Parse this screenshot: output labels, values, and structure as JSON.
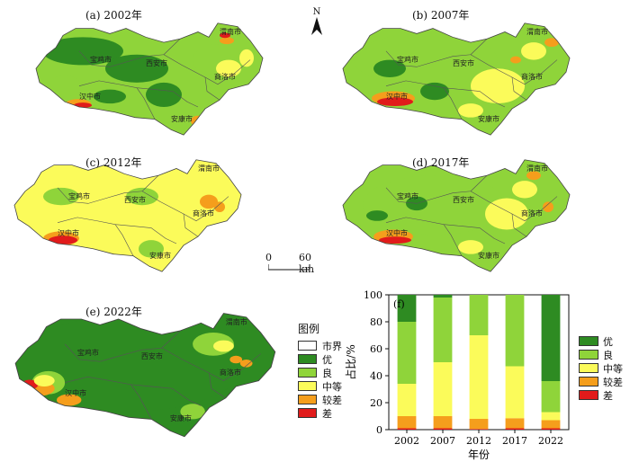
{
  "north_label": "N",
  "scale_bar": {
    "zero": "0",
    "end": "60 km"
  },
  "panels": [
    {
      "title": "(a) 2002年"
    },
    {
      "title": "(b) 2007年"
    },
    {
      "title": "(c) 2012年"
    },
    {
      "title": "(d) 2017年"
    },
    {
      "title": "(e) 2022年"
    }
  ],
  "cities": [
    "渭南市",
    "宝鸡市",
    "西安市",
    "商洛市",
    "汉中市",
    "安康市"
  ],
  "legend": {
    "title": "图例",
    "items": [
      {
        "label": "市界",
        "color": "#ffffff"
      },
      {
        "label": "优",
        "color": "#2e8b22"
      },
      {
        "label": "良",
        "color": "#8fd43a"
      },
      {
        "label": "中等",
        "color": "#fbfb5a"
      },
      {
        "label": "较差",
        "color": "#f59e1c"
      },
      {
        "label": "差",
        "color": "#e11b1b"
      }
    ]
  },
  "chart_data": {
    "type": "bar",
    "stacked": true,
    "panel_label": "(f)",
    "categories": [
      "2002",
      "2007",
      "2012",
      "2017",
      "2022"
    ],
    "xlabel": "年份",
    "ylabel": "占比/%",
    "ylim": [
      0,
      100
    ],
    "yticks": [
      0,
      20,
      40,
      60,
      80,
      100
    ],
    "series": [
      {
        "name": "差",
        "color": "#e11b1b",
        "values": [
          1,
          1,
          0.5,
          1,
          1
        ]
      },
      {
        "name": "较差",
        "color": "#f59e1c",
        "values": [
          9,
          9,
          7.5,
          7.5,
          6
        ]
      },
      {
        "name": "中等",
        "color": "#fbfb5a",
        "values": [
          24,
          40,
          62,
          38.5,
          6
        ]
      },
      {
        "name": "良",
        "color": "#8fd43a",
        "values": [
          46,
          48,
          30,
          53,
          23
        ]
      },
      {
        "name": "优",
        "color": "#2e8b22",
        "values": [
          20,
          2,
          0,
          0,
          64
        ]
      }
    ]
  }
}
